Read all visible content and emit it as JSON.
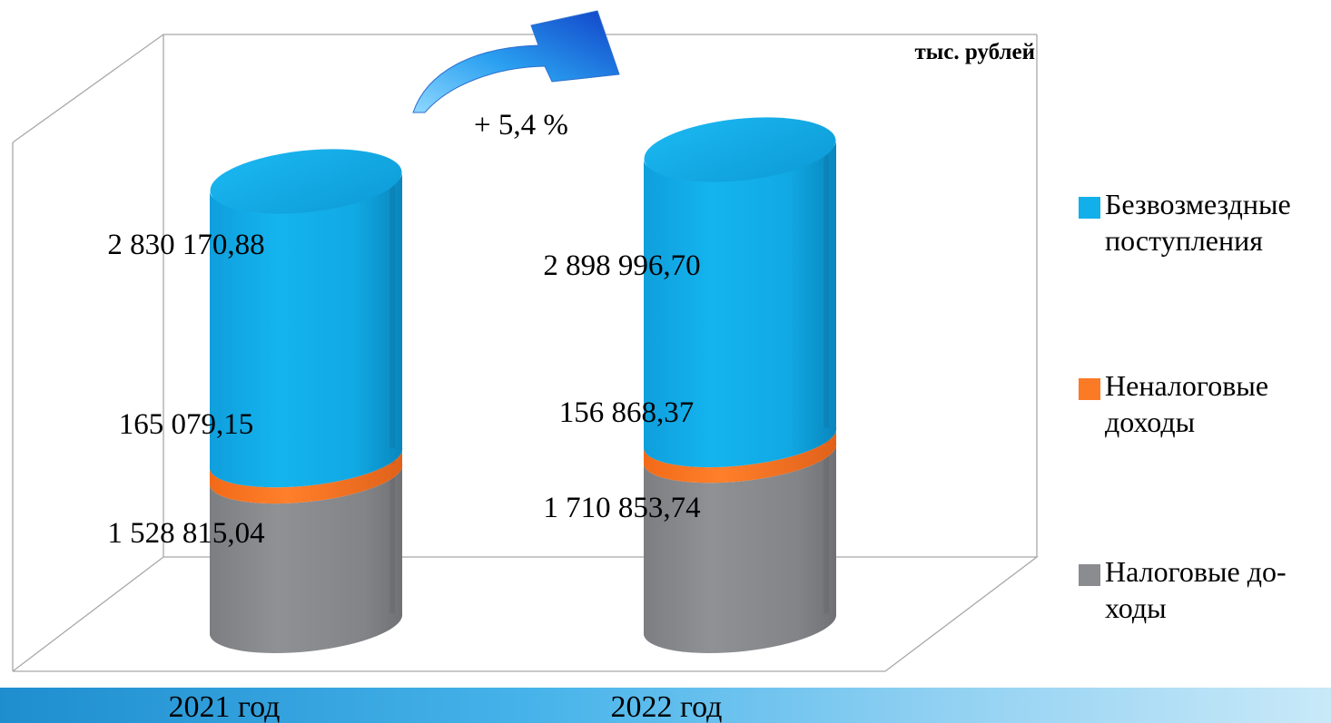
{
  "unit_label": "тыс. рублей",
  "change_label": "+ 5,4 %",
  "colors": {
    "bezvozmezdnye": "#11b0ea",
    "nenalogovye": "#fb7a26",
    "nalogovye": "#8a8c90",
    "arrow": "#1f7fe0",
    "frame": "#a8a8a8"
  },
  "legend": [
    {
      "line1": "Безвозмездные",
      "line2": "поступления",
      "color": "#11b0ea"
    },
    {
      "line1": "Неналоговые",
      "line2": "доходы",
      "color": "#fb7a26"
    },
    {
      "line1": "Налоговые до-",
      "line2": "ходы",
      "color": "#8a8c90"
    }
  ],
  "chart_data": {
    "type": "bar",
    "stacked": true,
    "style": "3d-cylinder",
    "categories": [
      "2021 год",
      "2022 год"
    ],
    "series": [
      {
        "name": "Налоговые доходы",
        "values": [
          1528815.04,
          1710853.74
        ],
        "labels": [
          "1 528 815,04",
          "1 710 853,74"
        ]
      },
      {
        "name": "Неналоговые доходы",
        "values": [
          165079.15,
          156868.37
        ],
        "labels": [
          "165 079,15",
          "156 868,37"
        ]
      },
      {
        "name": "Безвозмездные поступления",
        "values": [
          2830170.88,
          2898996.7
        ],
        "labels": [
          "2 830 170,88",
          "2 898 996,70"
        ]
      }
    ],
    "ylim": [
      0,
      4766718.81
    ],
    "annotation": "+ 5,4 %",
    "legend_position": "right",
    "grid": false
  }
}
